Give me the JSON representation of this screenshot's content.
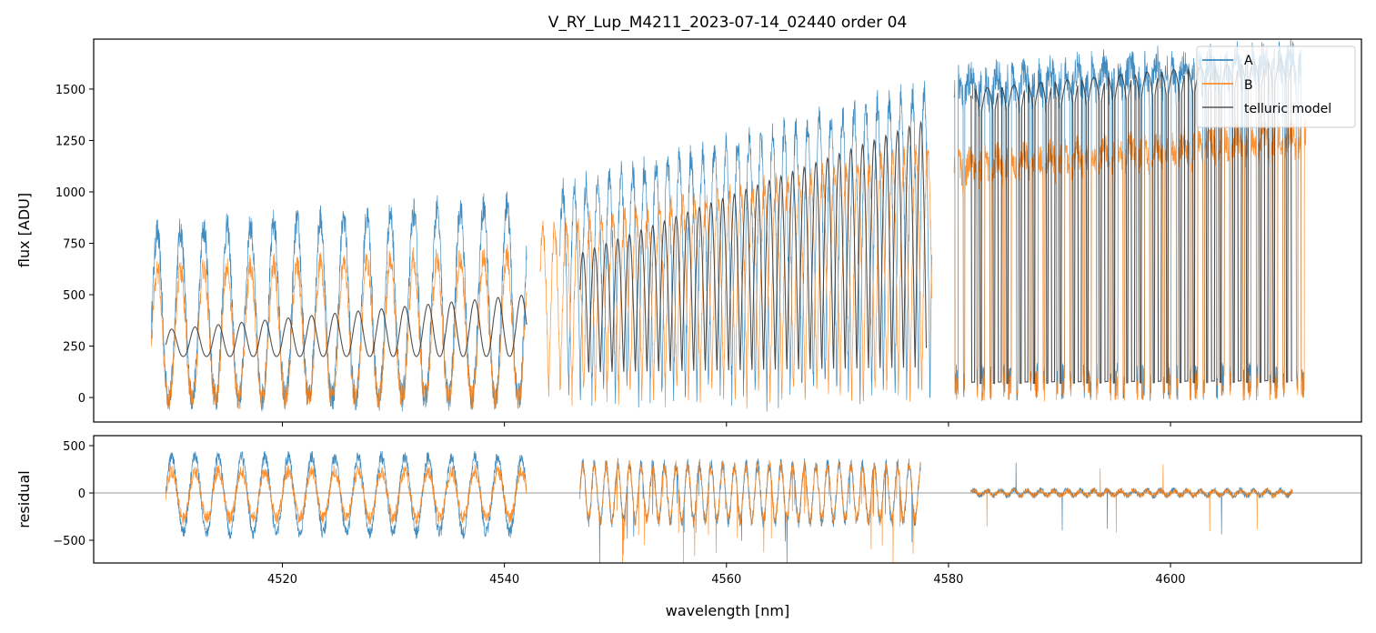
{
  "chart_data": [
    {
      "type": "line",
      "title": "V_RY_Lup_M4211_2023-07-14_02440  order 04",
      "xlabel": "",
      "ylabel": "flux [ADU]",
      "xlim": [
        4503,
        4617.2
      ],
      "ylim": [
        -119,
        1743
      ],
      "yticks": [
        0,
        250,
        500,
        750,
        1000,
        1250,
        1500
      ],
      "xticks": [
        4520,
        4540,
        4560,
        4580,
        4600
      ],
      "legend": {
        "placement": "top-right",
        "entries": [
          "A",
          "B",
          "telluric model"
        ]
      },
      "series": [
        {
          "name": "A",
          "color": "#1f77b4",
          "segments": [
            {
              "x": [
                4508.2,
                4542
              ],
              "period": 2.1,
              "peak": [
                800,
                950
              ],
              "trough": 0
            },
            {
              "x": [
                4545,
                4578.5
              ],
              "period": 1.05,
              "peak": [
                1000,
                1500
              ],
              "trough": 0
            },
            {
              "x": [
                4580.5,
                4612
              ],
              "period": 1.2,
              "peak": [
                1550,
                1680
              ],
              "trough": 0
            }
          ]
        },
        {
          "name": "B",
          "color": "#ff7f0e",
          "segments": [
            {
              "x": [
                4508.2,
                4542
              ],
              "period": 2.1,
              "peak": [
                620,
                700
              ],
              "trough": 0
            },
            {
              "x": [
                4543.2,
                4578.5
              ],
              "period": 1.05,
              "peak": [
                800,
                1200
              ],
              "trough": 0
            },
            {
              "x": [
                4580.5,
                4612.2
              ],
              "period": 1.2,
              "peak": [
                1150,
                1300
              ],
              "trough": 0
            }
          ]
        },
        {
          "name": "telluric model",
          "color": "#333333",
          "segments": [
            {
              "x": [
                4509.5,
                4542
              ],
              "period": 2.1,
              "peak": [
                330,
                500
              ],
              "trough": 200
            },
            {
              "x": [
                4546.8,
                4578
              ],
              "period": 1.05,
              "peak": [
                700,
                1350
              ],
              "trough": 100
            },
            {
              "x": [
                4582,
                4611
              ],
              "period": 1.2,
              "peak": [
                1500,
                1650
              ],
              "trough": 50
            }
          ]
        }
      ]
    },
    {
      "type": "line",
      "xlabel": "wavelength [nm]",
      "ylabel": "residual",
      "xlim": [
        4503,
        4617.2
      ],
      "ylim": [
        -740,
        606
      ],
      "yticks": [
        -500,
        0,
        500
      ],
      "xticks": [
        4520,
        4540,
        4560,
        4580,
        4600
      ],
      "reference_line": 0,
      "series": [
        {
          "name": "A",
          "color": "#1f77b4",
          "segments": [
            {
              "x": [
                4509.5,
                4542
              ],
              "period": 2.1,
              "amplitude": 400
            },
            {
              "x": [
                4546.8,
                4577.5
              ],
              "period": 1.05,
              "amplitude": 300
            },
            {
              "x": [
                4582,
                4611
              ],
              "period": 1.2,
              "amplitude": 30
            }
          ]
        },
        {
          "name": "B",
          "color": "#ff7f0e",
          "segments": [
            {
              "x": [
                4509.5,
                4542
              ],
              "period": 2.1,
              "amplitude": 250
            },
            {
              "x": [
                4546.8,
                4577.5
              ],
              "period": 1.05,
              "amplitude": 280
            },
            {
              "x": [
                4582,
                4611
              ],
              "period": 1.2,
              "amplitude": 25
            }
          ]
        }
      ]
    }
  ]
}
